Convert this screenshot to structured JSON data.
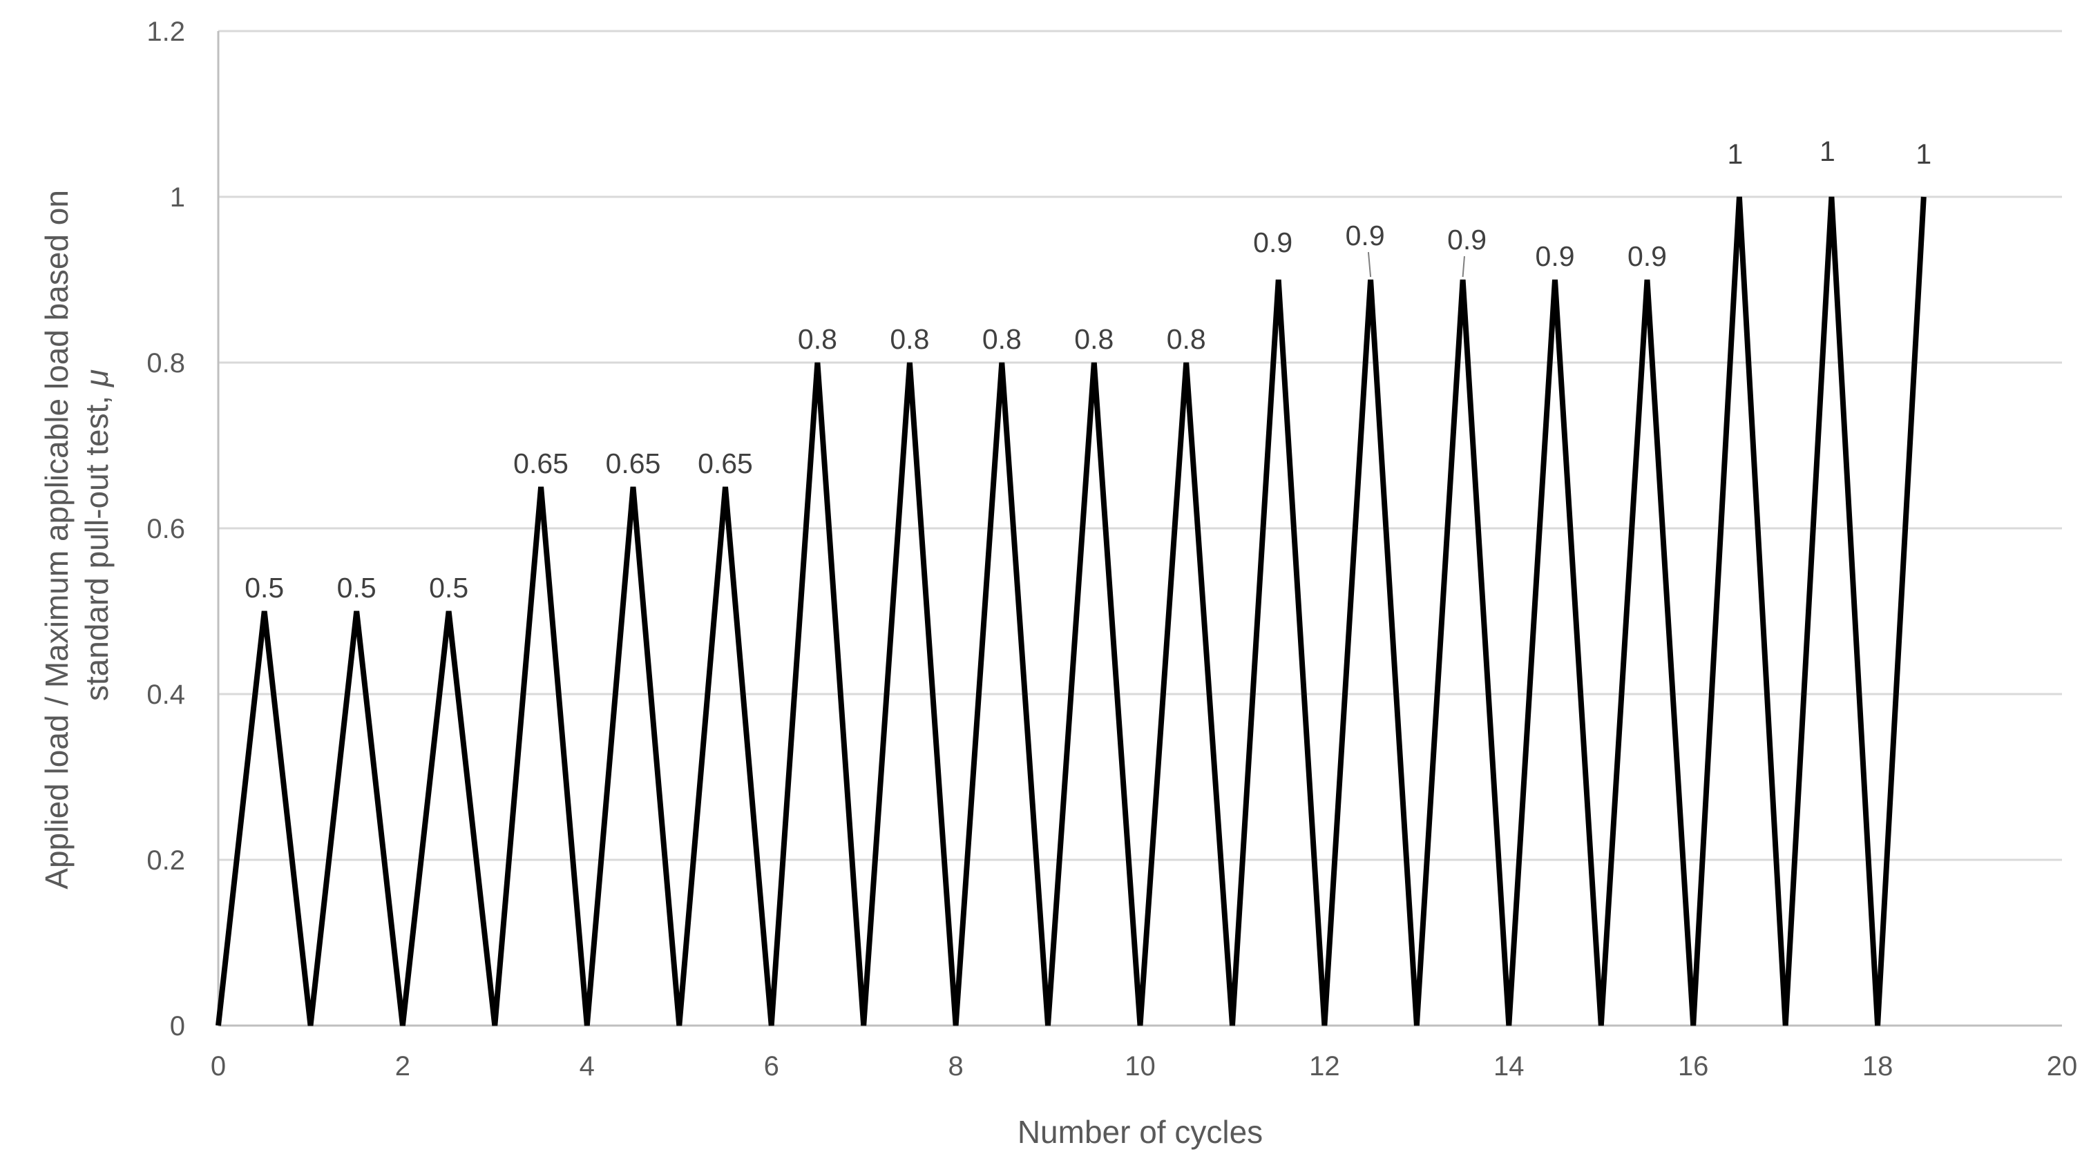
{
  "chart_data": {
    "type": "line",
    "title": "",
    "xlabel": "Number of cycles",
    "ylabel_line1": "Applied load / Maximum applicable load based on",
    "ylabel_line2": "standard pull-out test, ",
    "ylabel_symbol": "μ",
    "xlim": [
      0,
      20
    ],
    "ylim": [
      0,
      1.2
    ],
    "xticks": [
      0,
      2,
      4,
      6,
      8,
      10,
      12,
      14,
      16,
      18,
      20
    ],
    "yticks": [
      0,
      0.2,
      0.4,
      0.6,
      0.8,
      1,
      1.2
    ],
    "grid": "horizontal",
    "legend": "none",
    "series_color": "#000000",
    "series": [
      {
        "x": [
          0,
          0.5,
          1,
          1.5,
          2,
          2.5,
          3,
          3.5,
          4,
          4.5,
          5,
          5.5,
          6,
          6.5,
          7,
          7.5,
          8,
          8.5,
          9,
          9.5,
          10,
          10.5,
          11,
          11.5,
          12,
          12.5,
          13,
          13.5,
          14,
          14.5,
          15,
          15.5,
          16,
          16.5,
          17,
          17.5,
          18,
          18.5
        ],
        "y": [
          0,
          0.5,
          0,
          0.5,
          0,
          0.5,
          0,
          0.65,
          0,
          0.65,
          0,
          0.65,
          0,
          0.8,
          0,
          0.8,
          0,
          0.8,
          0,
          0.8,
          0,
          0.8,
          0,
          0.9,
          0,
          0.9,
          0,
          0.9,
          0,
          0.9,
          0,
          0.9,
          0,
          1,
          0,
          1,
          0,
          1
        ]
      }
    ],
    "data_labels": [
      {
        "x": 0.5,
        "y": 0.5,
        "text": "0.5"
      },
      {
        "x": 1.5,
        "y": 0.5,
        "text": "0.5"
      },
      {
        "x": 2.5,
        "y": 0.5,
        "text": "0.5"
      },
      {
        "x": 3.5,
        "y": 0.65,
        "text": "0.65"
      },
      {
        "x": 4.5,
        "y": 0.65,
        "text": "0.65"
      },
      {
        "x": 5.5,
        "y": 0.65,
        "text": "0.65"
      },
      {
        "x": 6.5,
        "y": 0.8,
        "text": "0.8"
      },
      {
        "x": 7.5,
        "y": 0.8,
        "text": "0.8"
      },
      {
        "x": 8.5,
        "y": 0.8,
        "text": "0.8"
      },
      {
        "x": 9.5,
        "y": 0.8,
        "text": "0.8"
      },
      {
        "x": 10.5,
        "y": 0.8,
        "text": "0.8"
      },
      {
        "x": 11.5,
        "y": 0.9,
        "text": "0.9"
      },
      {
        "x": 12.5,
        "y": 0.9,
        "text": "0.9"
      },
      {
        "x": 13.5,
        "y": 0.9,
        "text": "0.9"
      },
      {
        "x": 14.5,
        "y": 0.9,
        "text": "0.9"
      },
      {
        "x": 15.5,
        "y": 0.9,
        "text": "0.9"
      },
      {
        "x": 16.5,
        "y": 1,
        "text": "1"
      },
      {
        "x": 17.5,
        "y": 1,
        "text": "1"
      },
      {
        "x": 18.5,
        "y": 1,
        "text": "1"
      }
    ]
  }
}
